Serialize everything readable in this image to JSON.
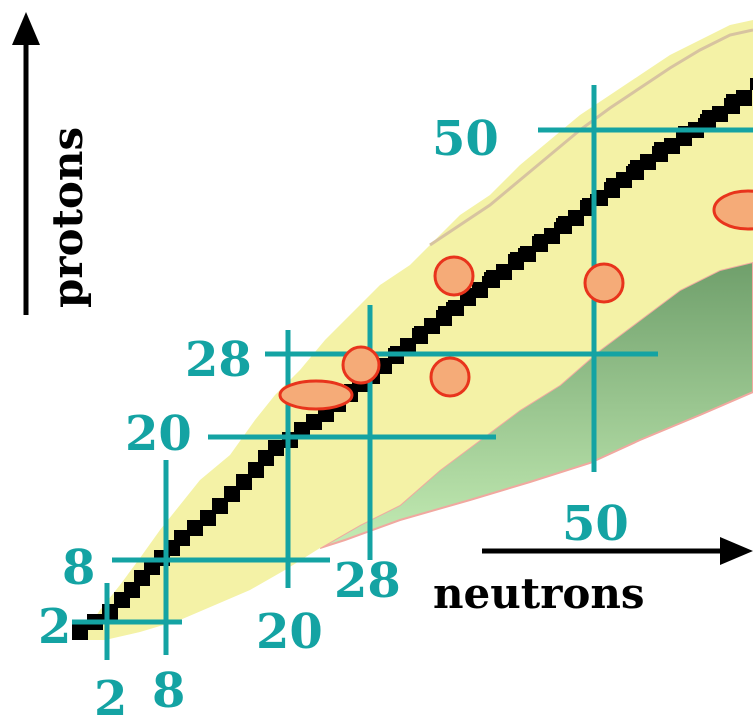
{
  "axes": {
    "y_label": "protons",
    "x_label": "neutrons"
  },
  "magic_numbers": {
    "protons": [
      "2",
      "8",
      "20",
      "28",
      "50"
    ],
    "neutrons": [
      "2",
      "8",
      "20",
      "28",
      "50"
    ]
  },
  "colors": {
    "magic_line": "#14a3a3",
    "stable": "#000000",
    "known_region": "#f4f2a6",
    "r_process_region": "#7fb57a",
    "highlight_fill": "#f5ab78",
    "highlight_stroke": "#e8341c",
    "text_magic": "#14a3a3",
    "text_axis": "#000000"
  }
}
